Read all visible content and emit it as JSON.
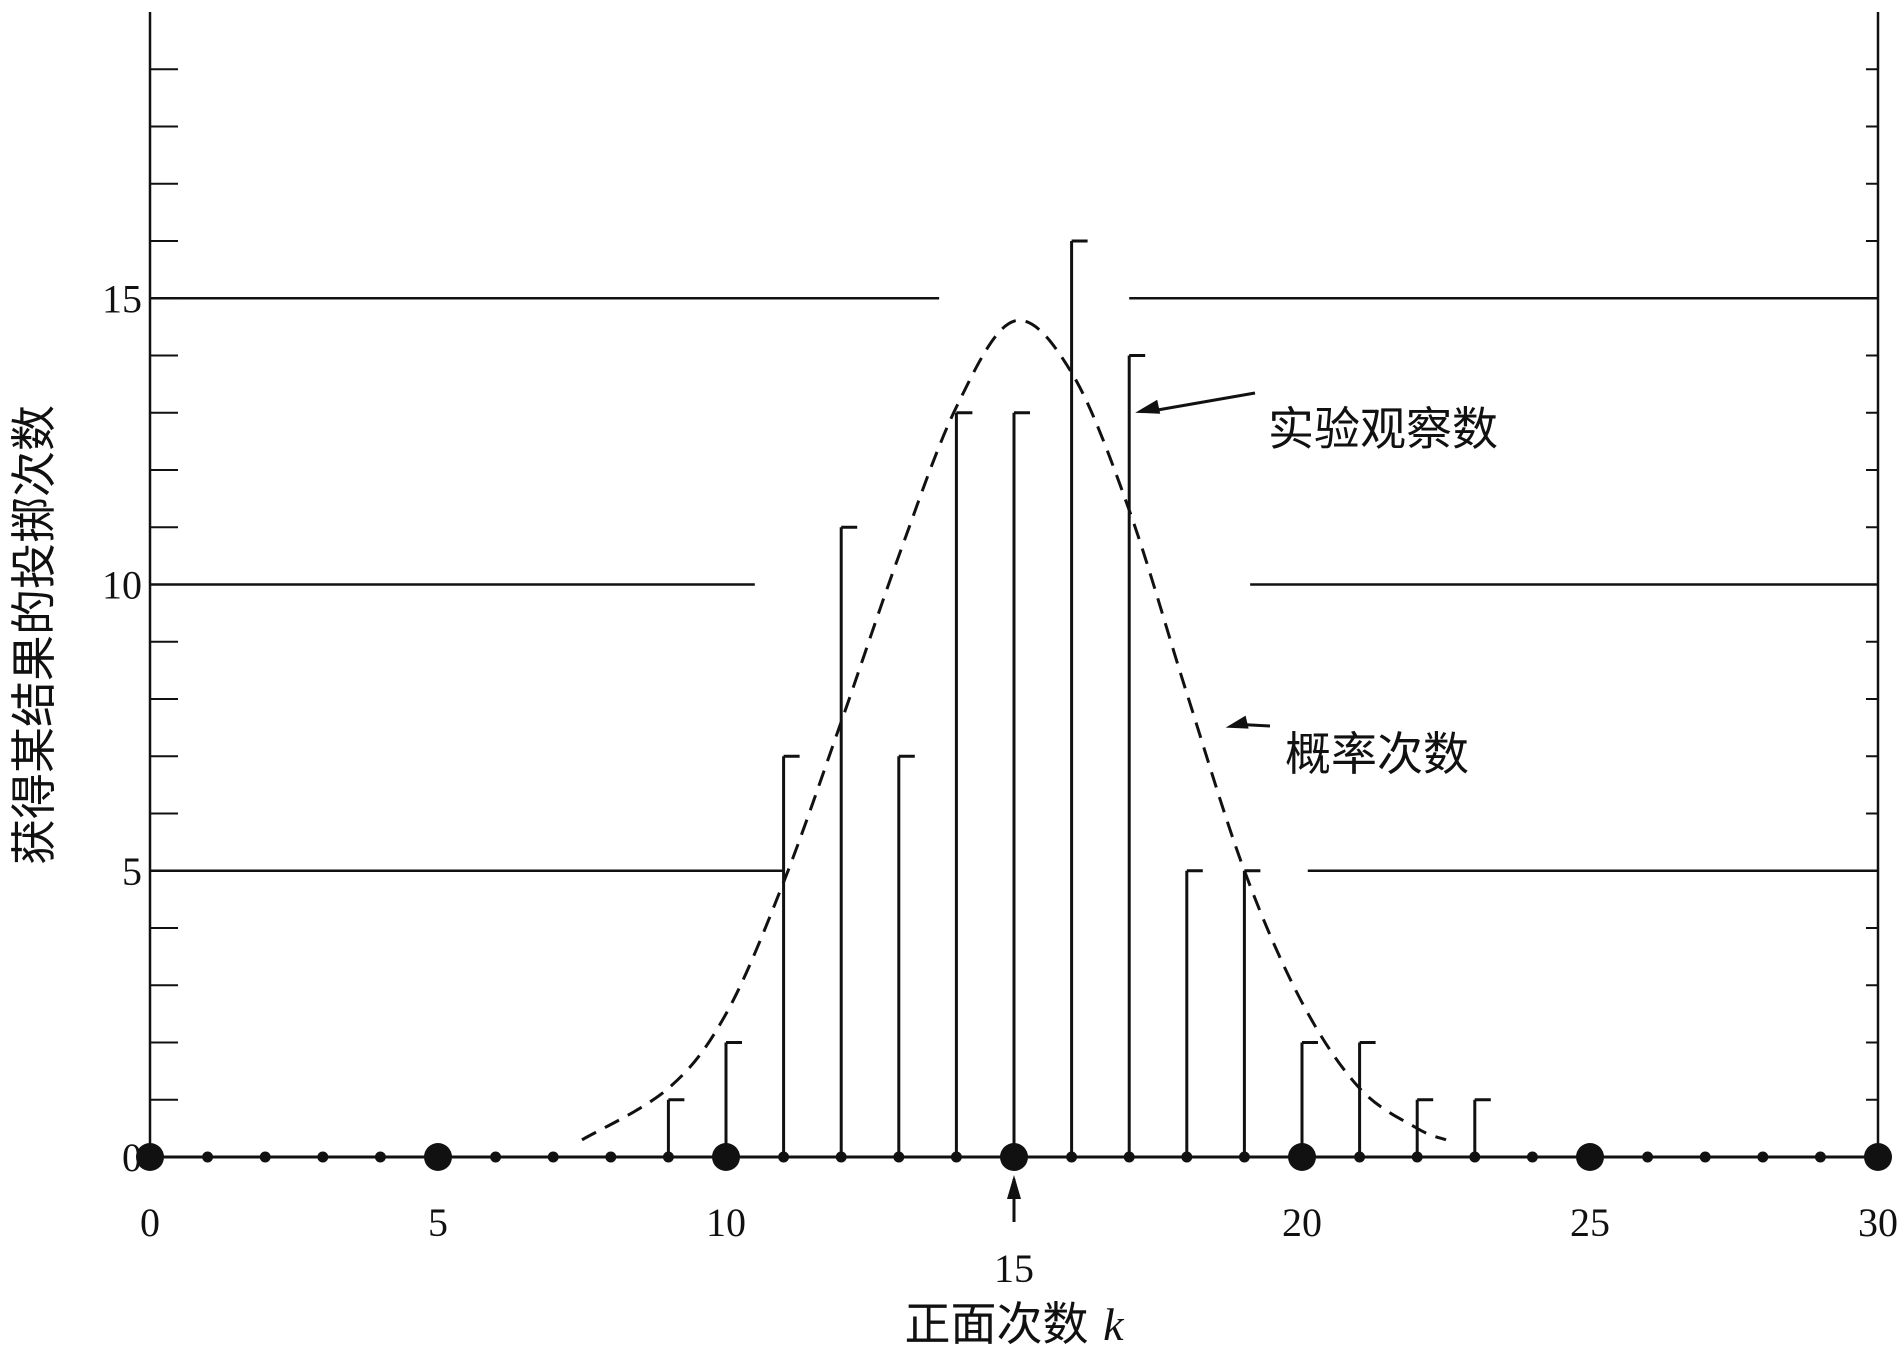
{
  "chart_data": {
    "type": "bar",
    "xlabel": "正面次数",
    "xlabel_var": "k",
    "ylabel": "获得某结果的投掷次数",
    "xlim": [
      0,
      30
    ],
    "ylim": [
      0,
      20
    ],
    "x_ticks": [
      0,
      5,
      10,
      15,
      20,
      25,
      30
    ],
    "x_ticks_bottom_row": [
      0,
      5,
      10,
      20,
      25,
      30
    ],
    "x_tick_highlighted": 15,
    "y_tick_labels": [
      0,
      5,
      10,
      15
    ],
    "y_minor_tick_step": 1,
    "gridlines_y": [
      5,
      10,
      15
    ],
    "series": [
      {
        "name": "实验观察数",
        "style": "vertical lines with cap",
        "x": [
          9,
          10,
          11,
          12,
          13,
          14,
          15,
          16,
          17,
          18,
          19,
          20,
          21,
          22,
          23
        ],
        "values": [
          1,
          2,
          7,
          11,
          7,
          13,
          13,
          16,
          14,
          5,
          5,
          2,
          2,
          1,
          1
        ]
      },
      {
        "name": "概率次数",
        "style": "dashed curve",
        "x": [
          7.5,
          9,
          10,
          11,
          12,
          13,
          14,
          15,
          16,
          17,
          18,
          19,
          20,
          21,
          22,
          22.5
        ],
        "values": [
          0.3,
          1.2,
          2.5,
          4.8,
          7.6,
          10.5,
          13.1,
          14.6,
          13.7,
          11.3,
          8.1,
          5.0,
          2.7,
          1.2,
          0.5,
          0.3
        ]
      }
    ],
    "annotations": [
      {
        "text": "实验观察数",
        "points_to": "series 0 at x=17"
      },
      {
        "text": "概率次数",
        "points_to": "series 1 near x=18.5"
      }
    ]
  }
}
